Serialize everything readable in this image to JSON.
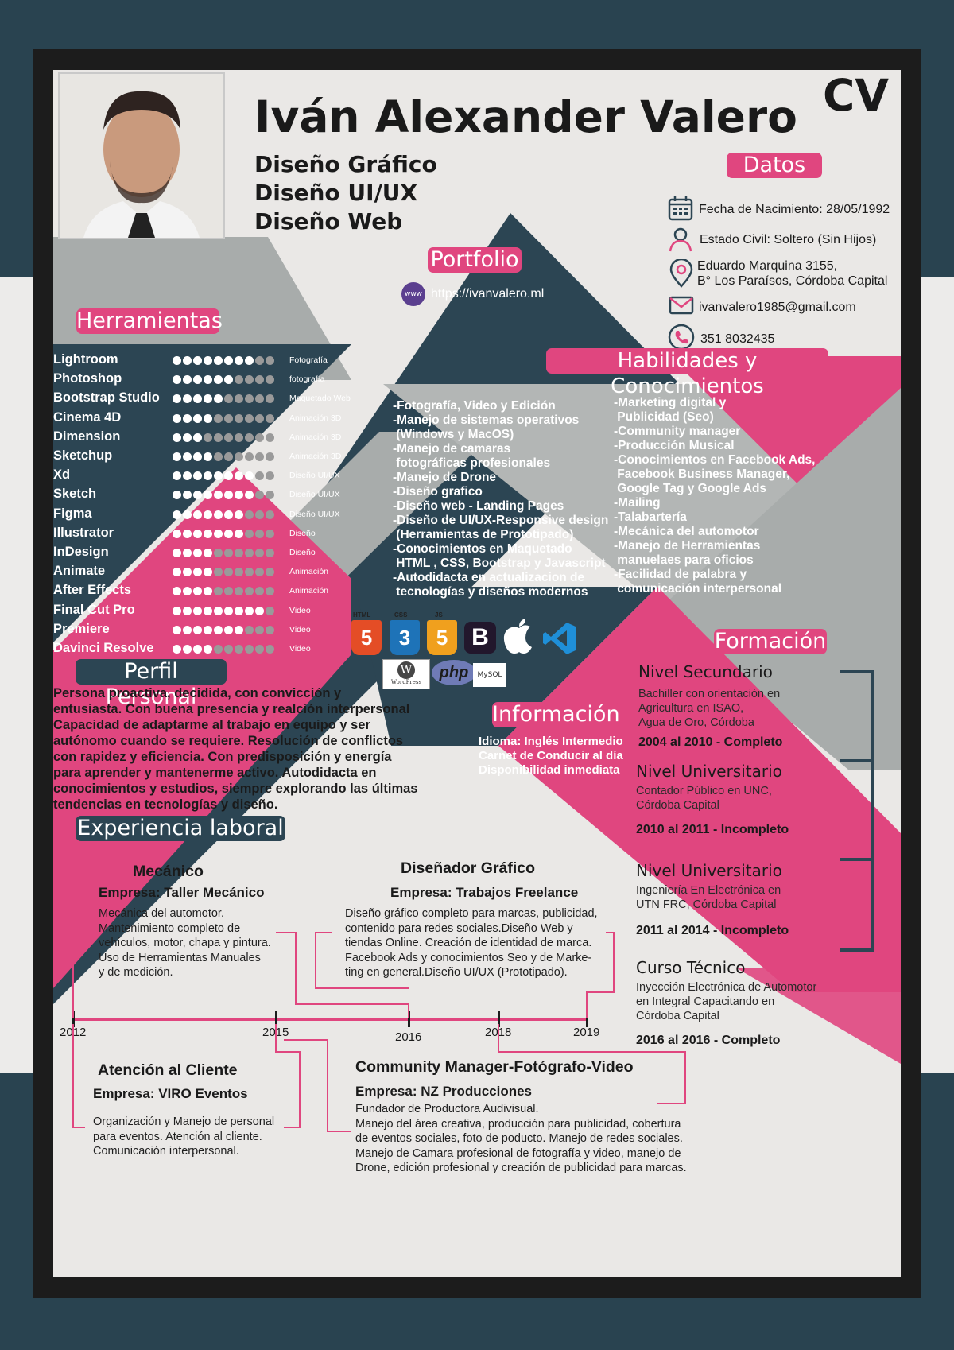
{
  "header": {
    "name": "Iván Alexander Valero",
    "cv_label": "CV",
    "roles": [
      "Diseño Gráfico",
      "Diseño UI/UX",
      "Diseño Web"
    ]
  },
  "colors": {
    "pink": "#e0467f",
    "navy": "#2c4553",
    "gray": "#a8acab",
    "paper": "#eae8e6"
  },
  "datos": {
    "title": "Datos",
    "birth": "Fecha de Nacimiento: 28/05/1992",
    "civil": "Estado Civil: Soltero (Sin Hijos)",
    "address_1": "Eduardo Marquina 3155,",
    "address_2": "B° Los Paraísos, Córdoba Capital",
    "email": "ivanvalero1985@gmail.com",
    "phone": "351 8032435",
    "icons": [
      "calendar-icon",
      "person-icon",
      "location-pin-icon",
      "mail-icon",
      "phone-icon"
    ]
  },
  "portfolio": {
    "title": "Portfolio",
    "icon_text": "www",
    "url": "https://ivanvalero.ml"
  },
  "herramientas": {
    "title": "Herramientas",
    "tools": [
      {
        "name": "Lightroom",
        "level": 8,
        "category": "Fotografía"
      },
      {
        "name": "Photoshop",
        "level": 6,
        "category": "fotografía"
      },
      {
        "name": "Bootstrap Studio",
        "level": 5,
        "category": "Maquetado Web"
      },
      {
        "name": "Cinema 4D",
        "level": 4,
        "category": "Animación 3D"
      },
      {
        "name": "Dimension",
        "level": 3,
        "category": "Animación 3D"
      },
      {
        "name": "Sketchup",
        "level": 4,
        "category": "Animación 3D"
      },
      {
        "name": "Xd",
        "level": 8,
        "category": "Diseño UI/UX"
      },
      {
        "name": "Sketch",
        "level": 8,
        "category": "Diseño UI/UX"
      },
      {
        "name": "Figma",
        "level": 7,
        "category": "Diseño UI/UX"
      },
      {
        "name": "Illustrator",
        "level": 7,
        "category": "Diseño"
      },
      {
        "name": "InDesign",
        "level": 4,
        "category": "Diseño"
      },
      {
        "name": "Animate",
        "level": 4,
        "category": "Animación"
      },
      {
        "name": "After Effects",
        "level": 4,
        "category": "Animación"
      },
      {
        "name": "Final Cut Pro",
        "level": 9,
        "category": "Video"
      },
      {
        "name": "Premiere",
        "level": 7,
        "category": "Video"
      },
      {
        "name": "Davinci Resolve",
        "level": 4,
        "category": "Video"
      }
    ],
    "max_level": 10
  },
  "habilidades": {
    "title": "Habilidades y Conocimientos",
    "col1": [
      "-Fotografía, Video y Edición",
      "-Manejo de sistemas operativos",
      " (Windows y MacOS)",
      "-Manejo de camaras",
      " fotográficas profesionales",
      "-Manejo de Drone",
      "-Diseño grafico",
      "-Diseño web - Landing Pages",
      "-Diseño de UI/UX-Responsive design",
      " (Herramientas de Prototipado)",
      "-Conocimientos en Maquetado",
      " HTML , CSS, Bootstrap y Javascript",
      "-Autodidacta en actualizacion de",
      " tecnologías y diseños modernos"
    ],
    "col2": [
      "-Marketing digital y",
      " Publicidad (Seo)",
      "-Community manager",
      "-Producción Musical",
      "-Conocimientos en Facebook Ads,",
      " Facebook Business Manager,",
      " Google Tag y Google Ads",
      "-Mailing",
      "-Talabartería",
      "-Mecánica del automotor",
      "-Manejo de Herramientas",
      " manuelaes para oficios",
      "-Facilidad de palabra y",
      " comunicación interpersonal"
    ]
  },
  "tech_logos": {
    "html_label": "HTML",
    "css_label": "CSS",
    "js_label": "JS",
    "html_glyph": "5",
    "css_glyph": "3",
    "js_glyph": "5",
    "bootstrap_glyph": "B",
    "wordpress_label": "WordPress",
    "php_label": "php",
    "mysql_label": "MySQL"
  },
  "perfil": {
    "title": "Perfil Personal",
    "lines": [
      "Persona proactiva, decidida, con convicción y",
      "entusiasta. Con buena presencia y realción interpersonal",
      "Capacidad de adaptarme al trabajo en equipo y ser",
      "autónomo cuando se requiere. Resolución de conflictos",
      "con rapidez y eficiencia. Con predisposición y energía",
      "para aprender y mantenerme activo. Autodidacta en",
      "conocimientos y estudios, siempre explorando las últimas",
      "tendencias en tecnologías y diseño."
    ]
  },
  "informacion": {
    "title": "Información",
    "lines": [
      "Idioma: Inglés Intermedio",
      "Carnet de Conducir al día",
      "Disponibilidad inmediata"
    ]
  },
  "formacion": {
    "title": "Formación",
    "items": [
      {
        "level": "Nivel Secundario",
        "desc": "Bachiller con orientación en\nAgricultura en ISAO,\nAgua de Oro, Córdoba",
        "period": "2004 al 2010 - Completo"
      },
      {
        "level": "Nivel Universitario",
        "desc": "Contador Público en UNC,\nCórdoba Capital",
        "period": "2010 al 2011 - Incompleto"
      },
      {
        "level": "Nivel Universitario",
        "desc": "Ingeniería En Electrónica en\nUTN FRC, Córdoba Capital",
        "period": "2011 al 2014 - Incompleto"
      },
      {
        "level": "Curso Técnico",
        "desc": "Inyección Electrónica de Automotor\nen Integral Capacitando en\nCórdoba Capital",
        "period": "2016 al 2016 - Completo"
      }
    ]
  },
  "experiencia": {
    "title": "Experiencia laboral",
    "years": [
      "2012",
      "2015",
      "2016",
      "2018",
      "2019"
    ],
    "jobs": [
      {
        "title": "Mecánico",
        "company": "Empresa: Taller Mecánico",
        "desc": "Mecánica del automotor.\nMantenimiento completo de\nvehículos, motor, chapa y pintura.\nUso de Herramientas Manuales\ny de medición."
      },
      {
        "title": "Diseñador Gráfico",
        "company": "Empresa: Trabajos Freelance",
        "desc": "Diseño gráfico completo para marcas, publicidad,\ncontenido para redes sociales.Diseño Web y\ntiendas Online. Creación de identidad de marca.\nFacebook Ads y  conocimientos Seo y de Marke-\nting en general.Diseño UI/UX (Prototipado)."
      },
      {
        "title": "Atención al Cliente",
        "company": "Empresa: VIRO Eventos",
        "desc": "Organización y Manejo de personal\npara eventos. Atención al cliente.\nComunicación interpersonal."
      },
      {
        "title": "Community Manager-Fotógrafo-Video",
        "company": "Empresa: NZ Producciones",
        "desc": "Fundador de Productora Audivisual.\nManejo del área creativa, producción para publicidad, cobertura\nde eventos sociales, foto de poducto. Manejo de redes sociales.\nManejo de Camara profesional de fotografía y video, manejo de\nDrone, edición profesional y creación de publicidad para marcas."
      }
    ]
  }
}
